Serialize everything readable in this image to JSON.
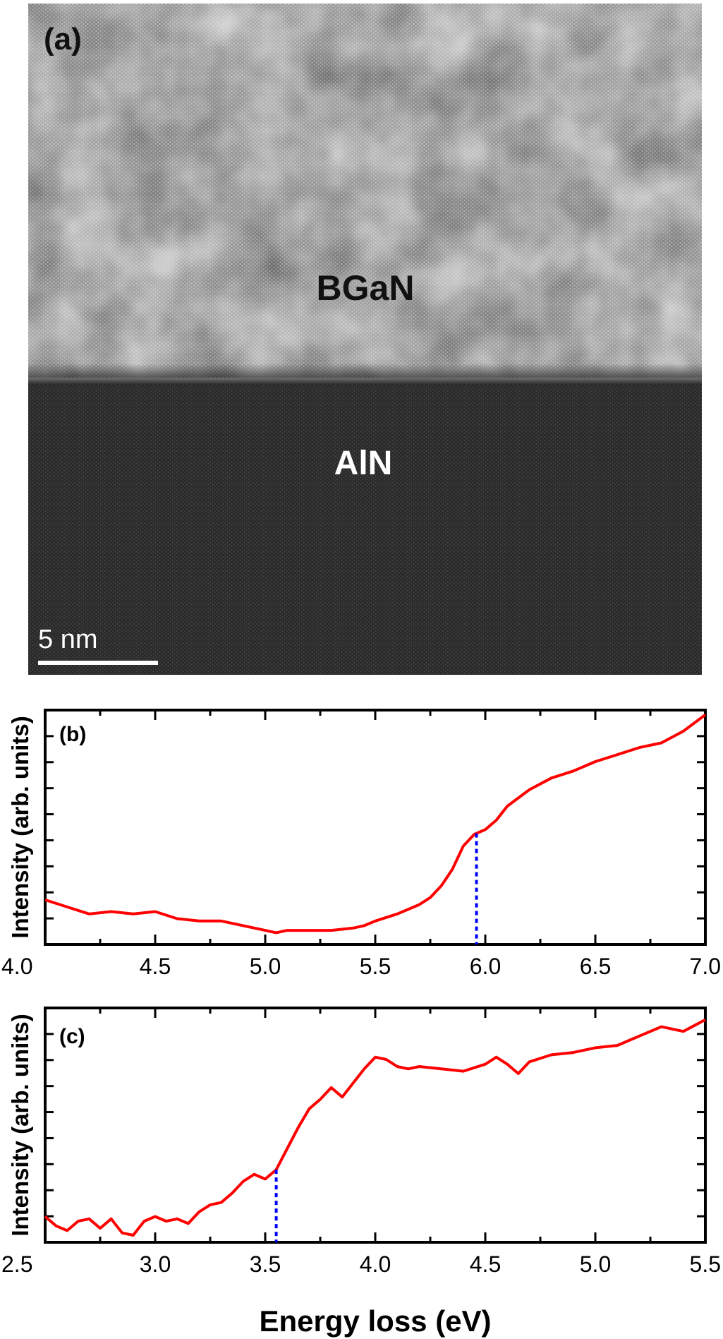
{
  "panel_a": {
    "label": "(a)",
    "upper_layer": "BGaN",
    "lower_layer": "AlN",
    "scale_bar": "5 nm"
  },
  "common": {
    "xlabel": "Energy loss (eV)",
    "line_color": "#ff0000",
    "marker_color": "#0000ff",
    "image_bright": "#dcdcdc",
    "image_dark": "#2a2a2a"
  },
  "chart_data": [
    {
      "type": "line",
      "panel_label": "(b)",
      "ylabel": "Intensity (arb. units)",
      "xlim": [
        4.0,
        7.0
      ],
      "ylim": [
        0,
        1
      ],
      "xticks": [
        "4.0",
        "4.5",
        "5.0",
        "5.5",
        "6.0",
        "6.5",
        "7.0"
      ],
      "y_tick_count": 8,
      "x": [
        4.0,
        4.1,
        4.2,
        4.3,
        4.4,
        4.5,
        4.6,
        4.7,
        4.8,
        4.9,
        5.0,
        5.05,
        5.1,
        5.2,
        5.3,
        5.4,
        5.45,
        5.5,
        5.6,
        5.7,
        5.75,
        5.8,
        5.85,
        5.9,
        5.95,
        6.0,
        6.05,
        6.1,
        6.2,
        6.3,
        6.4,
        6.5,
        6.6,
        6.7,
        6.8,
        6.9,
        7.0
      ],
      "y": [
        0.19,
        0.16,
        0.13,
        0.14,
        0.13,
        0.14,
        0.11,
        0.1,
        0.1,
        0.08,
        0.06,
        0.05,
        0.06,
        0.06,
        0.06,
        0.07,
        0.08,
        0.1,
        0.13,
        0.17,
        0.2,
        0.25,
        0.32,
        0.42,
        0.47,
        0.49,
        0.53,
        0.59,
        0.66,
        0.71,
        0.74,
        0.78,
        0.81,
        0.84,
        0.86,
        0.91,
        0.98
      ],
      "marker_x": 5.96
    },
    {
      "type": "line",
      "panel_label": "(c)",
      "ylabel": "Intensity (arb. units)",
      "xlim": [
        2.5,
        5.5
      ],
      "ylim": [
        0,
        1
      ],
      "xticks": [
        "2.5",
        "3.0",
        "3.5",
        "4.0",
        "4.5",
        "5.0",
        "5.5"
      ],
      "y_tick_count": 8,
      "x": [
        2.5,
        2.55,
        2.6,
        2.65,
        2.7,
        2.75,
        2.8,
        2.85,
        2.9,
        2.95,
        3.0,
        3.05,
        3.1,
        3.15,
        3.2,
        3.25,
        3.3,
        3.35,
        3.4,
        3.45,
        3.5,
        3.55,
        3.6,
        3.65,
        3.7,
        3.75,
        3.8,
        3.85,
        3.9,
        3.95,
        4.0,
        4.05,
        4.1,
        4.15,
        4.2,
        4.3,
        4.4,
        4.5,
        4.55,
        4.6,
        4.65,
        4.7,
        4.8,
        4.9,
        5.0,
        5.1,
        5.2,
        5.3,
        5.4,
        5.5
      ],
      "y": [
        0.11,
        0.07,
        0.05,
        0.09,
        0.1,
        0.06,
        0.1,
        0.04,
        0.03,
        0.09,
        0.11,
        0.09,
        0.1,
        0.08,
        0.13,
        0.16,
        0.17,
        0.21,
        0.26,
        0.29,
        0.27,
        0.31,
        0.4,
        0.49,
        0.57,
        0.61,
        0.66,
        0.62,
        0.68,
        0.74,
        0.79,
        0.78,
        0.75,
        0.74,
        0.75,
        0.74,
        0.73,
        0.76,
        0.79,
        0.76,
        0.72,
        0.77,
        0.8,
        0.81,
        0.83,
        0.84,
        0.88,
        0.92,
        0.9,
        0.95
      ],
      "marker_x": 3.55
    }
  ]
}
